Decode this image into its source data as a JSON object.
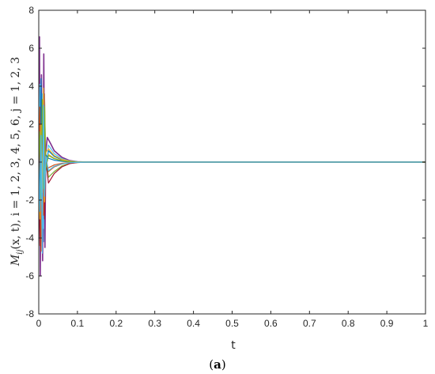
{
  "chart_data": {
    "type": "line",
    "xlabel": "t",
    "ylabel": "M_ij(x,t), i = 1,2,3,4,5,6, j = 1,2,3",
    "ylabel_parts": {
      "main": "M",
      "sub": "ij",
      "args": "(x, t), i = 1, 2, 3, 4, 5, 6, j = 1, 2, 3"
    },
    "caption": "(a)",
    "caption_parts": {
      "open": "(",
      "letter": "a",
      "close": ")"
    },
    "xlim": [
      0,
      1
    ],
    "ylim": [
      -8,
      8
    ],
    "xticks": [
      0,
      0.1,
      0.2,
      0.3,
      0.4,
      0.5,
      0.6,
      0.7,
      0.8,
      0.9,
      1
    ],
    "xtick_labels": [
      "0",
      "0.1",
      "0.2",
      "0.3",
      "0.4",
      "0.5",
      "0.6",
      "0.7",
      "0.8",
      "0.9",
      "1"
    ],
    "yticks": [
      -8,
      -6,
      -4,
      -2,
      0,
      2,
      4,
      6,
      8
    ],
    "ytick_labels": [
      "-8",
      "-6",
      "-4",
      "-2",
      "0",
      "2",
      "4",
      "6",
      "8"
    ],
    "grid": false,
    "legend": "none",
    "series": [
      {
        "color": "#0072BD",
        "x": [
          0,
          0.003,
          0.006,
          0.009,
          0.012,
          0.015,
          0.018,
          0.025,
          0.04,
          0.06,
          0.08,
          0.1,
          0.13,
          1
        ],
        "y": [
          0,
          3.2,
          -2.8,
          2.1,
          -4.2,
          3.4,
          -0.5,
          0.6,
          0.3,
          0.12,
          0.04,
          0.01,
          0,
          0
        ]
      },
      {
        "color": "#D95319",
        "x": [
          0,
          0.003,
          0.006,
          0.009,
          0.012,
          0.015,
          0.018,
          0.025,
          0.04,
          0.06,
          0.08,
          0.1,
          0.13,
          1
        ],
        "y": [
          0,
          -3.5,
          3.0,
          -4.2,
          2.6,
          -1.5,
          0.4,
          -0.5,
          -0.25,
          -0.1,
          -0.03,
          -0.01,
          0,
          0
        ]
      },
      {
        "color": "#EDB120",
        "x": [
          0,
          0.003,
          0.006,
          0.009,
          0.012,
          0.015,
          0.018,
          0.025,
          0.04,
          0.06,
          0.08,
          0.1,
          0.13,
          1
        ],
        "y": [
          0,
          2.5,
          -3.6,
          2.8,
          -2.0,
          3.6,
          -0.3,
          0.4,
          0.2,
          0.08,
          0.03,
          0.01,
          0,
          0
        ]
      },
      {
        "color": "#7E2F8E",
        "x": [
          0,
          0.002,
          0.004,
          0.007,
          0.01,
          0.013,
          0.016,
          0.018,
          0.022,
          0.03,
          0.04,
          0.06,
          0.08,
          0.1,
          0.13,
          1
        ],
        "y": [
          0,
          6.6,
          -6.0,
          4.6,
          -5.2,
          5.7,
          -4.5,
          0.5,
          1.3,
          1.0,
          0.6,
          0.25,
          0.08,
          0.02,
          0,
          0
        ]
      },
      {
        "color": "#77AC30",
        "x": [
          0,
          0.003,
          0.006,
          0.009,
          0.012,
          0.015,
          0.018,
          0.025,
          0.04,
          0.06,
          0.08,
          0.1,
          0.13,
          1
        ],
        "y": [
          0,
          -2.2,
          2.8,
          -3.0,
          3.2,
          -2.6,
          0.3,
          -0.8,
          -0.5,
          -0.2,
          -0.07,
          -0.02,
          0,
          0
        ]
      },
      {
        "color": "#4DBEEE",
        "x": [
          0,
          0.003,
          0.006,
          0.009,
          0.012,
          0.015,
          0.018,
          0.025,
          0.04,
          0.06,
          0.08,
          0.1,
          0.13,
          1
        ],
        "y": [
          0,
          4.1,
          -3.1,
          3.6,
          -3.5,
          2.2,
          -0.6,
          0.9,
          0.45,
          0.18,
          0.06,
          0.02,
          0,
          0
        ]
      },
      {
        "color": "#A2142F",
        "x": [
          0,
          0.003,
          0.006,
          0.009,
          0.012,
          0.015,
          0.018,
          0.025,
          0.04,
          0.06,
          0.08,
          0.1,
          0.13,
          1
        ],
        "y": [
          0,
          -4.4,
          3.8,
          -2.5,
          2.2,
          -3.0,
          0.2,
          -1.1,
          -0.6,
          -0.25,
          -0.08,
          -0.02,
          0,
          0
        ]
      },
      {
        "color": "#0072BD",
        "x": [
          0,
          0.003,
          0.006,
          0.009,
          0.012,
          0.015,
          0.018,
          0.025,
          0.04,
          0.06,
          0.08,
          0.1,
          0.13,
          1
        ],
        "y": [
          0,
          -1.8,
          4.4,
          -3.9,
          1.7,
          -1.2,
          0.4,
          0.2,
          0.1,
          0.04,
          0.01,
          0,
          0,
          0
        ]
      },
      {
        "color": "#D95319",
        "x": [
          0,
          0.003,
          0.006,
          0.009,
          0.012,
          0.015,
          0.018,
          0.025,
          0.04,
          0.06,
          0.08,
          0.1,
          0.13,
          1
        ],
        "y": [
          0,
          2.9,
          -4.7,
          1.9,
          -2.8,
          1.6,
          -0.2,
          -0.3,
          -0.15,
          -0.06,
          -0.02,
          0,
          0,
          0
        ]
      },
      {
        "color": "#EDB120",
        "x": [
          0,
          0.003,
          0.006,
          0.009,
          0.012,
          0.015,
          0.018,
          0.025,
          0.04,
          0.06,
          0.08,
          0.1,
          0.13,
          1
        ],
        "y": [
          0,
          -3.0,
          2.0,
          -1.6,
          3.9,
          -2.1,
          0.5,
          0.7,
          0.35,
          0.14,
          0.05,
          0.01,
          0,
          0
        ]
      },
      {
        "color": "#77AC30",
        "x": [
          0,
          0.003,
          0.006,
          0.009,
          0.012,
          0.015,
          0.018,
          0.025,
          0.04,
          0.06,
          0.08,
          0.1,
          0.13,
          1
        ],
        "y": [
          0,
          1.6,
          -1.9,
          3.3,
          -1.4,
          2.9,
          -0.4,
          0.35,
          0.18,
          0.07,
          0.02,
          0,
          0,
          0
        ]
      },
      {
        "color": "#4DBEEE",
        "x": [
          0,
          0.003,
          0.006,
          0.009,
          0.012,
          0.015,
          0.018,
          0.025,
          0.04,
          0.06,
          0.08,
          0.1,
          0.13,
          1
        ],
        "y": [
          0,
          -2.6,
          1.4,
          -4.8,
          3.0,
          -1.8,
          0.3,
          -0.45,
          -0.22,
          -0.09,
          -0.03,
          -0.01,
          0,
          0
        ]
      }
    ]
  }
}
